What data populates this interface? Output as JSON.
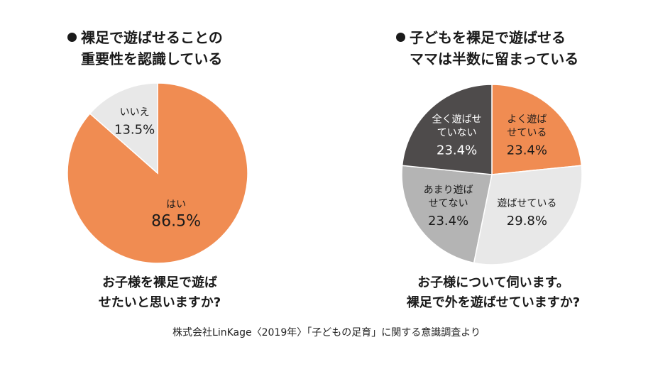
{
  "left_panel": {
    "title_line1": "裸足で遊ばせることの",
    "title_line2": "重要性を認識している",
    "question_line1": "お子様を裸足で遊ば",
    "question_line2": "せたいと思いますか?"
  },
  "right_panel": {
    "title_line1": "子どもを裸足で遊ばせる",
    "title_line2": "ママは半数に留まっている",
    "question_line1": "お子様について伺います。",
    "question_line2": "裸足で外を遊ばせていますか?"
  },
  "source": "株式会社LinKage〈2019年〉「子どもの足育」に関する意識調査より",
  "chart_data": [
    {
      "type": "pie",
      "slices": [
        {
          "label_lines": [
            "はい"
          ],
          "value": 86.5,
          "value_text": "86.5%",
          "color": "#f08c52",
          "text_color": "#1a1a1a"
        },
        {
          "label_lines": [
            "いいえ"
          ],
          "value": 13.5,
          "value_text": "13.5%",
          "color": "#e8e8e8",
          "text_color": "#1a1a1a"
        }
      ]
    },
    {
      "type": "pie",
      "slices": [
        {
          "label_lines": [
            "よく遊ば",
            "せている"
          ],
          "value": 23.4,
          "value_text": "23.4%",
          "color": "#f08c52",
          "text_color": "#1a1a1a"
        },
        {
          "label_lines": [
            "遊ばせている"
          ],
          "value": 29.8,
          "value_text": "29.8%",
          "color": "#e8e8e8",
          "text_color": "#1a1a1a"
        },
        {
          "label_lines": [
            "あまり遊ば",
            "せてない"
          ],
          "value": 23.4,
          "value_text": "23.4%",
          "color": "#b4b4b4",
          "text_color": "#1a1a1a"
        },
        {
          "label_lines": [
            "全く遊ばせ",
            "ていない"
          ],
          "value": 23.4,
          "value_text": "23.4%",
          "color": "#4e4b4b",
          "text_color": "#ffffff"
        }
      ]
    }
  ]
}
